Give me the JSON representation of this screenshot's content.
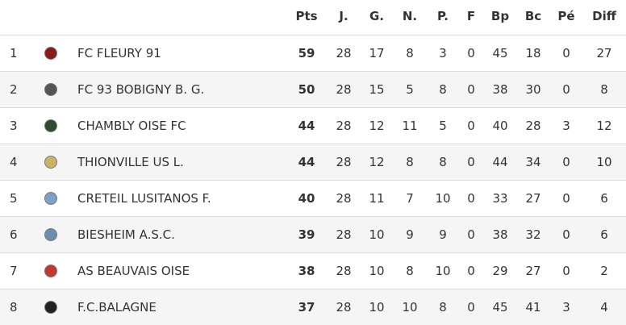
{
  "table": {
    "headers": [
      "Pts",
      "J.",
      "G.",
      "N.",
      "P.",
      "F",
      "Bp",
      "Bc",
      "Pé",
      "Diff"
    ],
    "rows": [
      [
        1,
        "FC FLEURY 91",
        59,
        28,
        17,
        8,
        3,
        0,
        45,
        18,
        0,
        27
      ],
      [
        2,
        "FC 93 BOBIGNY B. G.",
        50,
        28,
        15,
        5,
        8,
        0,
        38,
        30,
        0,
        8
      ],
      [
        3,
        "CHAMBLY OISE FC",
        44,
        28,
        12,
        11,
        5,
        0,
        40,
        28,
        3,
        12
      ],
      [
        4,
        "THIONVILLE US L.",
        44,
        28,
        12,
        8,
        8,
        0,
        44,
        34,
        0,
        10
      ],
      [
        5,
        "CRETEIL LUSITANOS F.",
        40,
        28,
        11,
        7,
        10,
        0,
        33,
        27,
        0,
        6
      ],
      [
        6,
        "BIESHEIM A.S.C.",
        39,
        28,
        10,
        9,
        9,
        0,
        38,
        32,
        0,
        6
      ],
      [
        7,
        "AS BEAUVAIS OISE",
        38,
        28,
        10,
        8,
        10,
        0,
        29,
        27,
        0,
        2
      ],
      [
        8,
        "F.C.BALAGNE",
        37,
        28,
        10,
        10,
        8,
        0,
        45,
        41,
        3,
        4
      ]
    ]
  }
}
